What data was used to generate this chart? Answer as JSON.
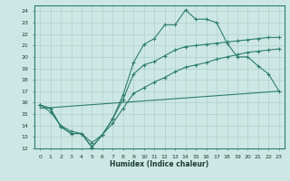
{
  "xlabel": "Humidex (Indice chaleur)",
  "bg_color": "#cde8e4",
  "line_color": "#2e7d6e",
  "grid_color": "#b0cfca",
  "xlim": [
    -0.5,
    23.5
  ],
  "ylim": [
    12,
    24.5
  ],
  "yticks": [
    12,
    13,
    14,
    15,
    16,
    17,
    18,
    19,
    20,
    21,
    22,
    23,
    24
  ],
  "xticks": [
    0,
    1,
    2,
    3,
    4,
    5,
    6,
    7,
    8,
    9,
    10,
    11,
    12,
    13,
    14,
    15,
    16,
    17,
    18,
    19,
    20,
    21,
    22,
    23
  ],
  "curve1_x": [
    0,
    1,
    2,
    3,
    4,
    5,
    6,
    7,
    8,
    9,
    10,
    11,
    12,
    13,
    14,
    15,
    16,
    17,
    18,
    19,
    20,
    21,
    22,
    23
  ],
  "curve1_y": [
    15.8,
    15.5,
    13.9,
    13.3,
    13.3,
    12.1,
    13.2,
    14.6,
    16.7,
    19.5,
    21.1,
    21.6,
    22.8,
    22.8,
    24.1,
    23.3,
    23.3,
    23.0,
    21.2,
    20.0,
    20.0,
    19.2,
    18.5,
    17.0
  ],
  "curve2_x": [
    0,
    1,
    2,
    3,
    4,
    5,
    6,
    7,
    8,
    9,
    10,
    11,
    12,
    13,
    14,
    15,
    16,
    17,
    18,
    19,
    20,
    21,
    22,
    23
  ],
  "curve2_y": [
    15.8,
    15.5,
    13.9,
    13.3,
    13.3,
    12.1,
    13.2,
    14.6,
    16.3,
    18.5,
    19.3,
    19.6,
    20.1,
    20.6,
    20.9,
    21.0,
    21.1,
    21.2,
    21.3,
    21.4,
    21.5,
    21.6,
    21.7,
    21.7
  ],
  "curve3_x": [
    0,
    1,
    2,
    3,
    4,
    5,
    6,
    7,
    8,
    9,
    10,
    11,
    12,
    13,
    14,
    15,
    16,
    17,
    18,
    19,
    20,
    21,
    22,
    23
  ],
  "curve3_y": [
    15.8,
    15.2,
    14.0,
    13.5,
    13.3,
    12.5,
    13.2,
    14.2,
    15.5,
    16.8,
    17.3,
    17.8,
    18.2,
    18.7,
    19.1,
    19.3,
    19.5,
    19.8,
    20.0,
    20.2,
    20.4,
    20.5,
    20.6,
    20.7
  ],
  "refline_x": [
    0,
    23
  ],
  "refline_y": [
    15.5,
    17.0
  ]
}
